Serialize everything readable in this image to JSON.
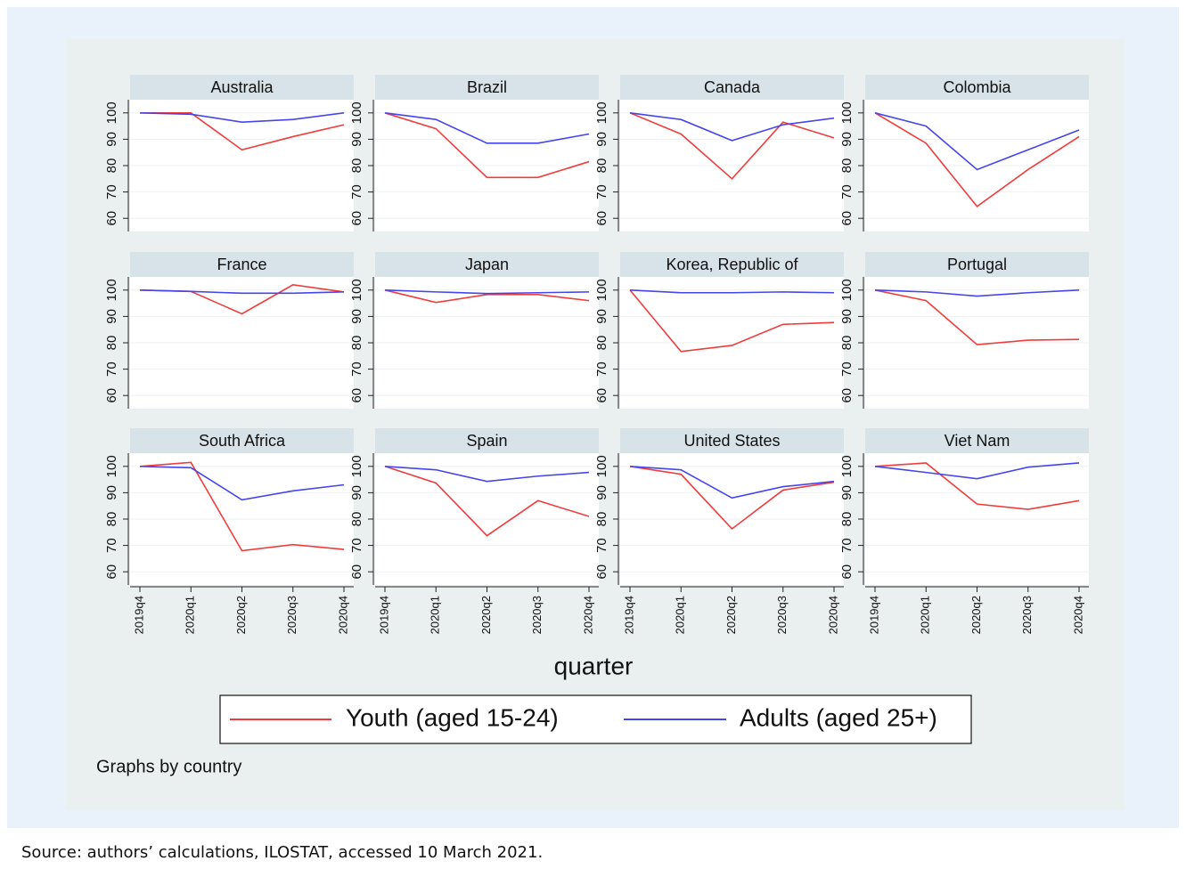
{
  "chart_data": [
    {
      "type": "line",
      "title": "Australia",
      "categories": [
        "2019q4",
        "2020q1",
        "2020q2",
        "2020q3",
        "2020q4"
      ],
      "ylim": [
        55,
        105
      ],
      "yticks": [
        60,
        70,
        80,
        90,
        100
      ],
      "grid": true,
      "series": [
        {
          "name": "Youth (aged 15-24)",
          "color": "#f03c3c",
          "values": [
            100,
            100,
            86,
            91,
            95.5
          ]
        },
        {
          "name": "Adults (aged 25+)",
          "color": "#4545ee",
          "values": [
            100,
            99.5,
            96.5,
            97.5,
            100
          ]
        }
      ]
    },
    {
      "type": "line",
      "title": "Brazil",
      "categories": [
        "2019q4",
        "2020q1",
        "2020q2",
        "2020q3",
        "2020q4"
      ],
      "ylim": [
        55,
        105
      ],
      "yticks": [
        60,
        70,
        80,
        90,
        100
      ],
      "grid": true,
      "series": [
        {
          "name": "Youth (aged 15-24)",
          "color": "#f03c3c",
          "values": [
            100,
            94,
            75.5,
            75.5,
            81.5
          ]
        },
        {
          "name": "Adults (aged 25+)",
          "color": "#4545ee",
          "values": [
            100,
            97.5,
            88.5,
            88.5,
            92
          ]
        }
      ]
    },
    {
      "type": "line",
      "title": "Canada",
      "categories": [
        "2019q4",
        "2020q1",
        "2020q2",
        "2020q3",
        "2020q4"
      ],
      "ylim": [
        55,
        105
      ],
      "yticks": [
        60,
        70,
        80,
        90,
        100
      ],
      "grid": true,
      "series": [
        {
          "name": "Youth (aged 15-24)",
          "color": "#f03c3c",
          "values": [
            100,
            92,
            75,
            96.5,
            90.5
          ]
        },
        {
          "name": "Adults (aged 25+)",
          "color": "#4545ee",
          "values": [
            100,
            97.5,
            89.5,
            95.5,
            98
          ]
        }
      ]
    },
    {
      "type": "line",
      "title": "Colombia",
      "categories": [
        "2019q4",
        "2020q1",
        "2020q2",
        "2020q3",
        "2020q4"
      ],
      "ylim": [
        55,
        105
      ],
      "yticks": [
        60,
        70,
        80,
        90,
        100
      ],
      "grid": true,
      "series": [
        {
          "name": "Youth (aged 15-24)",
          "color": "#f03c3c",
          "values": [
            100,
            88.5,
            64.5,
            78.5,
            91
          ]
        },
        {
          "name": "Adults (aged 25+)",
          "color": "#4545ee",
          "values": [
            100,
            95,
            78.5,
            86,
            93.5
          ]
        }
      ]
    },
    {
      "type": "line",
      "title": "France",
      "categories": [
        "2019q4",
        "2020q1",
        "2020q2",
        "2020q3",
        "2020q4"
      ],
      "ylim": [
        55,
        105
      ],
      "yticks": [
        60,
        70,
        80,
        90,
        100
      ],
      "grid": true,
      "series": [
        {
          "name": "Youth (aged 15-24)",
          "color": "#f03c3c",
          "values": [
            100,
            99.5,
            91,
            102,
            99.3
          ]
        },
        {
          "name": "Adults (aged 25+)",
          "color": "#4545ee",
          "values": [
            100,
            99.5,
            98.8,
            98.8,
            99.3
          ]
        }
      ]
    },
    {
      "type": "line",
      "title": "Japan",
      "categories": [
        "2019q4",
        "2020q1",
        "2020q2",
        "2020q3",
        "2020q4"
      ],
      "ylim": [
        55,
        105
      ],
      "yticks": [
        60,
        70,
        80,
        90,
        100
      ],
      "grid": true,
      "series": [
        {
          "name": "Youth (aged 15-24)",
          "color": "#f03c3c",
          "values": [
            100,
            95.3,
            98.3,
            98.3,
            96
          ]
        },
        {
          "name": "Adults (aged 25+)",
          "color": "#4545ee",
          "values": [
            100,
            99.3,
            98.7,
            99,
            99.3
          ]
        }
      ]
    },
    {
      "type": "line",
      "title": "Korea, Republic of",
      "categories": [
        "2019q4",
        "2020q1",
        "2020q2",
        "2020q3",
        "2020q4"
      ],
      "ylim": [
        55,
        105
      ],
      "yticks": [
        60,
        70,
        80,
        90,
        100
      ],
      "grid": true,
      "series": [
        {
          "name": "Youth (aged 15-24)",
          "color": "#f03c3c",
          "values": [
            100,
            76.7,
            79,
            87,
            87.7
          ]
        },
        {
          "name": "Adults (aged 25+)",
          "color": "#4545ee",
          "values": [
            100,
            99,
            99,
            99.3,
            99
          ]
        }
      ]
    },
    {
      "type": "line",
      "title": "Portugal",
      "categories": [
        "2019q4",
        "2020q1",
        "2020q2",
        "2020q3",
        "2020q4"
      ],
      "ylim": [
        55,
        105
      ],
      "yticks": [
        60,
        70,
        80,
        90,
        100
      ],
      "grid": true,
      "series": [
        {
          "name": "Youth (aged 15-24)",
          "color": "#f03c3c",
          "values": [
            100,
            96,
            79.3,
            81,
            81.3
          ]
        },
        {
          "name": "Adults (aged 25+)",
          "color": "#4545ee",
          "values": [
            100,
            99.3,
            97.7,
            99,
            100
          ]
        }
      ]
    },
    {
      "type": "line",
      "title": "South Africa",
      "categories": [
        "2019q4",
        "2020q1",
        "2020q2",
        "2020q3",
        "2020q4"
      ],
      "ylim": [
        55,
        105
      ],
      "yticks": [
        60,
        70,
        80,
        90,
        100
      ],
      "grid": true,
      "series": [
        {
          "name": "Youth (aged 15-24)",
          "color": "#f03c3c",
          "values": [
            100,
            101.5,
            68,
            70.3,
            68.5
          ]
        },
        {
          "name": "Adults (aged 25+)",
          "color": "#4545ee",
          "values": [
            100,
            99.5,
            87.3,
            90.7,
            93
          ]
        }
      ]
    },
    {
      "type": "line",
      "title": "Spain",
      "categories": [
        "2019q4",
        "2020q1",
        "2020q2",
        "2020q3",
        "2020q4"
      ],
      "ylim": [
        55,
        105
      ],
      "yticks": [
        60,
        70,
        80,
        90,
        100
      ],
      "grid": true,
      "series": [
        {
          "name": "Youth (aged 15-24)",
          "color": "#f03c3c",
          "values": [
            100,
            93.7,
            73.7,
            87,
            81
          ]
        },
        {
          "name": "Adults (aged 25+)",
          "color": "#4545ee",
          "values": [
            100,
            98.7,
            94.3,
            96.3,
            97.7
          ]
        }
      ]
    },
    {
      "type": "line",
      "title": "United States",
      "categories": [
        "2019q4",
        "2020q1",
        "2020q2",
        "2020q3",
        "2020q4"
      ],
      "ylim": [
        55,
        105
      ],
      "yticks": [
        60,
        70,
        80,
        90,
        100
      ],
      "grid": true,
      "series": [
        {
          "name": "Youth (aged 15-24)",
          "color": "#f03c3c",
          "values": [
            100,
            97,
            76.3,
            91,
            94
          ]
        },
        {
          "name": "Adults (aged 25+)",
          "color": "#4545ee",
          "values": [
            100,
            98.7,
            88,
            92.3,
            94.3
          ]
        }
      ]
    },
    {
      "type": "line",
      "title": "Viet Nam",
      "categories": [
        "2019q4",
        "2020q1",
        "2020q2",
        "2020q3",
        "2020q4"
      ],
      "ylim": [
        55,
        105
      ],
      "yticks": [
        60,
        70,
        80,
        90,
        100
      ],
      "grid": true,
      "series": [
        {
          "name": "Youth (aged 15-24)",
          "color": "#f03c3c",
          "values": [
            100,
            101.3,
            85.7,
            83.7,
            87
          ]
        },
        {
          "name": "Adults (aged 25+)",
          "color": "#4545ee",
          "values": [
            100,
            97.7,
            95.3,
            99.7,
            101.3
          ]
        }
      ]
    }
  ],
  "xlabel": "quarter",
  "note": "Graphs by country",
  "source": "Source: authors’ calculations, ILOSTAT, accessed 10 March 2021."
}
